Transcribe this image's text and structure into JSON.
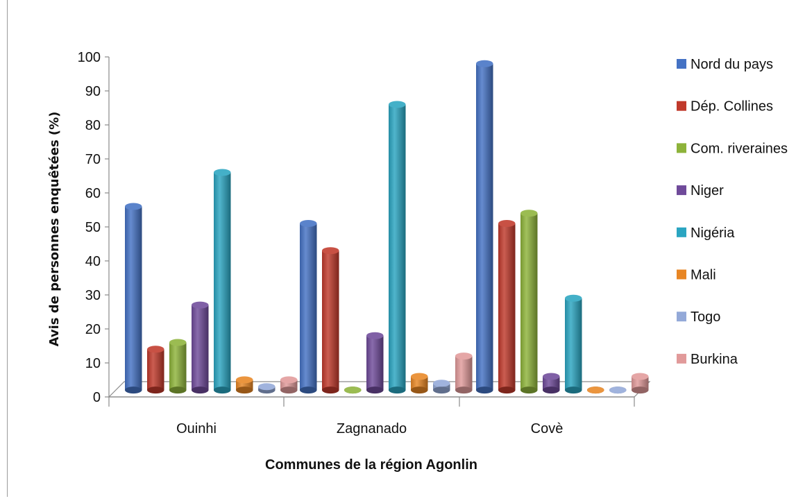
{
  "chart_data": {
    "type": "bar",
    "title": "",
    "xlabel": "Communes de la région Agonlin",
    "ylabel": "Avis de personnes enquêtées (%)",
    "ylim": [
      0,
      100
    ],
    "yticks": [
      0,
      10,
      20,
      30,
      40,
      50,
      60,
      70,
      80,
      90,
      100
    ],
    "categories": [
      "Ouinhi",
      "Zagnanado",
      "Covè"
    ],
    "legend_position": "right",
    "series": [
      {
        "name": "Nord du pays",
        "color": "#4472C4",
        "values": [
          54,
          49,
          96
        ]
      },
      {
        "name": "Dép. Collines",
        "color": "#C0392B",
        "values": [
          12,
          41,
          49
        ]
      },
      {
        "name": "Com. riveraines",
        "color": "#8DB33A",
        "values": [
          14,
          0,
          52
        ]
      },
      {
        "name": "Niger",
        "color": "#6F4A9A",
        "values": [
          25,
          16,
          4
        ]
      },
      {
        "name": "Nigéria",
        "color": "#2AA5C1",
        "values": [
          64,
          84,
          27
        ]
      },
      {
        "name": "Mali",
        "color": "#E88624",
        "values": [
          3,
          4,
          0
        ]
      },
      {
        "name": "Togo",
        "color": "#93A9D8",
        "values": [
          1,
          2,
          0
        ]
      },
      {
        "name": "Burkina",
        "color": "#E19A9A",
        "values": [
          3,
          10,
          4
        ]
      }
    ]
  }
}
